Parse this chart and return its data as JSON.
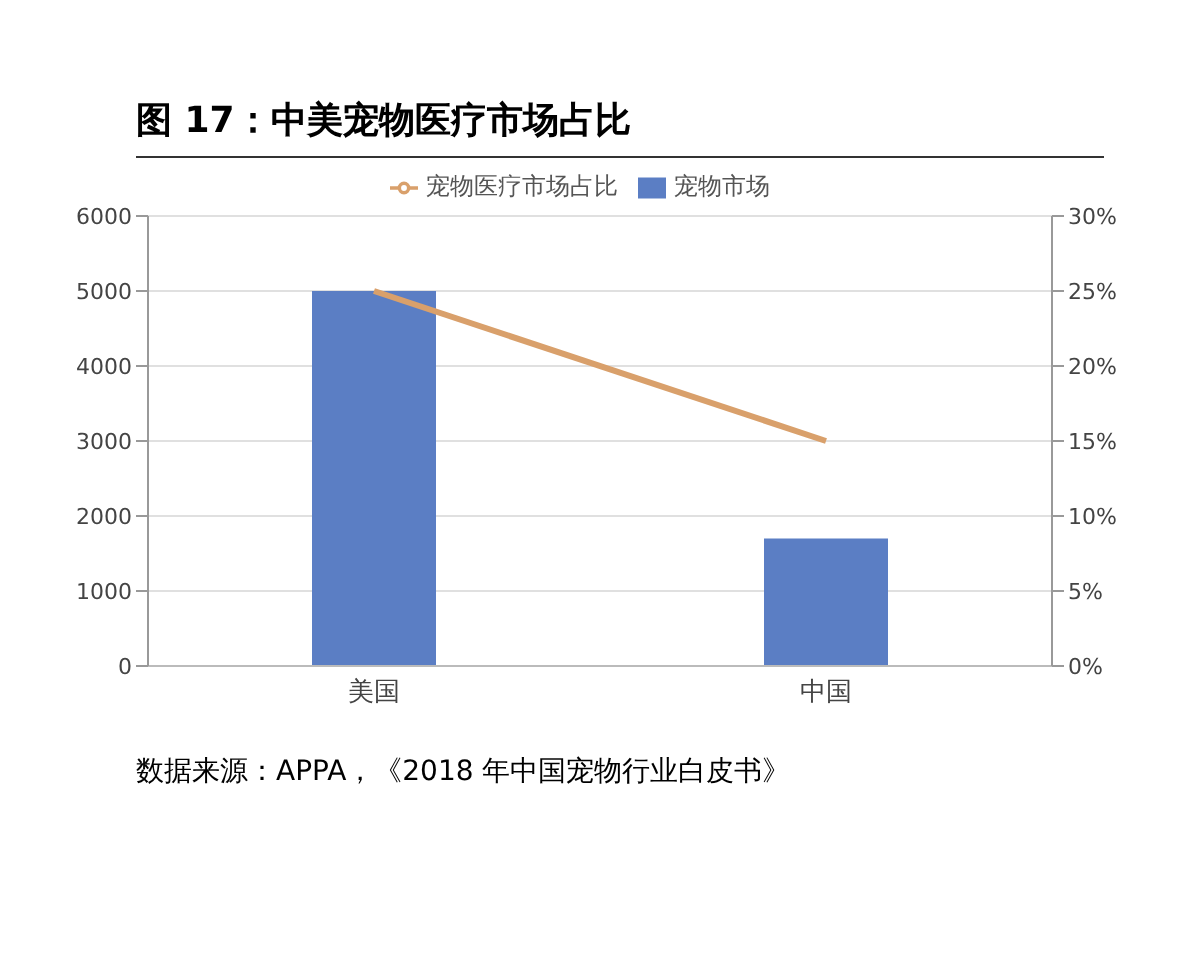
{
  "chart_data": {
    "type": "bar",
    "title": "图 17：中美宠物医疗市场占比",
    "categories": [
      "美国",
      "中国"
    ],
    "series": [
      {
        "name": "宠物市场",
        "color": "#5b7ec4",
        "values": [
          5000,
          1700
        ]
      },
      {
        "name": "宠物医疗市场占比",
        "type": "line",
        "axis": "y2",
        "color": "#d9a06b",
        "values": [
          25,
          15
        ],
        "marker": "none"
      }
    ],
    "ylim": [
      0,
      6000
    ],
    "yticks": [
      0,
      1000,
      2000,
      3000,
      4000,
      5000,
      6000
    ],
    "y2lim": [
      0,
      30
    ],
    "y2ticks": [
      {
        "value": 0,
        "label": "0%"
      },
      {
        "value": 5,
        "label": "5%"
      },
      {
        "value": 10,
        "label": "10%"
      },
      {
        "value": 15,
        "label": "15%"
      },
      {
        "value": 20,
        "label": "20%"
      },
      {
        "value": 25,
        "label": "25%"
      },
      {
        "value": 30,
        "label": "30%"
      }
    ],
    "grid": "y",
    "legend": "top",
    "annotations": [
      "数据来源：APPA，《2018 年中国宠物行业白皮书》"
    ]
  }
}
